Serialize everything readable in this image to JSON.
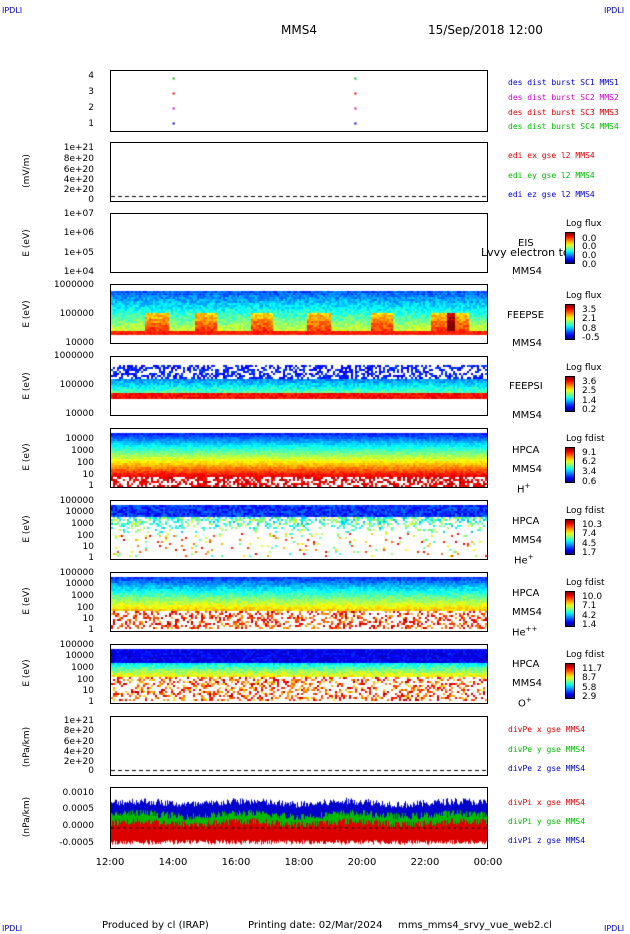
{
  "header": {
    "corner_tl": "IPDLI",
    "corner_tr": "IPDLI",
    "corner_bl": "IPDLI",
    "corner_br": "IPDLI",
    "spacecraft": "MMS4",
    "datetime": "15/Sep/2018 12:00"
  },
  "footer": {
    "producer": "Produced by cl (IRAP)",
    "print_date": "Printing date: 02/Mar/2024",
    "script": "mms_mms4_srvy_vue_web2.cl"
  },
  "colors": {
    "mms1": "#0000cc",
    "mms2": "#cc00cc",
    "mms3": "#dd0000",
    "mms4": "#00bb00"
  },
  "chart_data": [
    {
      "type": "scatter",
      "id": "burst",
      "ylim": [
        0.5,
        4.5
      ],
      "yticks": [
        "4",
        "3",
        "2",
        "1"
      ],
      "legend": [
        "des dist burst SC1 MMS1",
        "des dist burst SC2 MMS2",
        "des dist burst SC3 MMS3",
        "des dist burst SC4 MMS4"
      ],
      "series": [
        {
          "name": "des dist burst SC1 MMS1",
          "y": 1,
          "x_hours": [
            14.0,
            19.8
          ]
        },
        {
          "name": "des dist burst SC2 MMS2",
          "y": 2,
          "x_hours": [
            14.0,
            19.8
          ]
        },
        {
          "name": "des dist burst SC3 MMS3",
          "y": 3,
          "x_hours": [
            14.0,
            19.8
          ]
        },
        {
          "name": "des dist burst SC4 MMS4",
          "y": 4,
          "x_hours": [
            14.0,
            19.8
          ]
        }
      ]
    },
    {
      "type": "line",
      "id": "edi",
      "ylabel": "(mV/m)",
      "yticks": [
        "1e+21",
        "8e+20",
        "6e+20",
        "4e+20",
        "2e+20",
        "0"
      ],
      "legend": [
        "edi ex gse l2 MMS4",
        "edi ey gse l2 MMS4",
        "edi ez gse l2 MMS4"
      ]
    },
    {
      "type": "heatmap",
      "id": "eis",
      "ylabel": "E (eV)",
      "yticks": [
        "1e+07",
        "1e+06",
        "1e+05",
        "1e+04"
      ],
      "instrument": "EIS",
      "spacecraft": "MMS4",
      "overlay": "Lvvy electron to",
      "colorbar": {
        "title": "Log flux",
        "values": [
          "0.0",
          "0.0",
          "0.0",
          "0.0"
        ]
      }
    },
    {
      "type": "heatmap",
      "id": "feepse",
      "ylabel": "E (eV)",
      "yticks": [
        "1000000",
        "100000",
        "10000"
      ],
      "instrument": "FEEPSE",
      "spacecraft": "MMS4",
      "colorbar": {
        "title": "Log flux",
        "values": [
          "3.5",
          "2.1",
          "0.8",
          "-0.5"
        ]
      }
    },
    {
      "type": "heatmap",
      "id": "feepsi",
      "ylabel": "E (eV)",
      "yticks": [
        "1000000",
        "100000",
        "10000"
      ],
      "instrument": "FEEPSI",
      "spacecraft": "MMS4",
      "colorbar": {
        "title": "Log flux",
        "values": [
          "3.6",
          "2.5",
          "1.4",
          "0.2"
        ]
      }
    },
    {
      "type": "heatmap",
      "id": "hpca_h",
      "ylabel": "E (eV)",
      "yticks": [
        "10000",
        "1000",
        "100",
        "10",
        "1"
      ],
      "instrument": "HPCA",
      "spacecraft": "MMS4",
      "species": "H",
      "charge": "+",
      "colorbar": {
        "title": "Log fdist",
        "values": [
          "9.1",
          "6.2",
          "3.4",
          "0.6"
        ]
      }
    },
    {
      "type": "heatmap",
      "id": "hpca_he1",
      "ylabel": "E (eV)",
      "yticks": [
        "100000",
        "10000",
        "1000",
        "100",
        "10",
        "1"
      ],
      "instrument": "HPCA",
      "spacecraft": "MMS4",
      "species": "He",
      "charge": "+",
      "colorbar": {
        "title": "Log fdist",
        "values": [
          "10.3",
          "7.4",
          "4.5",
          "1.7"
        ]
      }
    },
    {
      "type": "heatmap",
      "id": "hpca_he2",
      "ylabel": "E (eV)",
      "yticks": [
        "100000",
        "10000",
        "1000",
        "100",
        "10",
        "1"
      ],
      "instrument": "HPCA",
      "spacecraft": "MMS4",
      "species": "He",
      "charge": "++",
      "colorbar": {
        "title": "Log fdist",
        "values": [
          "10.0",
          "7.1",
          "4.2",
          "1.4"
        ]
      }
    },
    {
      "type": "heatmap",
      "id": "hpca_o",
      "ylabel": "E (eV)",
      "yticks": [
        "100000",
        "10000",
        "1000",
        "100",
        "10",
        "1"
      ],
      "instrument": "HPCA",
      "spacecraft": "MMS4",
      "species": "O",
      "charge": "+",
      "colorbar": {
        "title": "Log fdist",
        "values": [
          "11.7",
          "8.7",
          "5.8",
          "2.9"
        ]
      }
    },
    {
      "type": "line",
      "id": "divpe",
      "ylabel": "(nPa/km)",
      "yticks": [
        "1e+21",
        "8e+20",
        "6e+20",
        "4e+20",
        "2e+20",
        "0"
      ],
      "legend": [
        "divPe x gse MMS4",
        "divPe y gse MMS4",
        "divPe z gse MMS4"
      ]
    },
    {
      "type": "area",
      "id": "divpi",
      "ylabel": "(nPa/km)",
      "ylim": [
        -0.0005,
        0.001
      ],
      "yticks": [
        "0.0010",
        "0.0005",
        "0.0000",
        "-0.0005"
      ],
      "legend": [
        "divPi x gse MMS4",
        "divPi y gse MMS4",
        "divPi z gse MMS4"
      ],
      "series": [
        {
          "name": "divPi z gse MMS4",
          "band": [
            -0.0001,
            0.0005
          ]
        },
        {
          "name": "divPi y gse MMS4",
          "band": [
            -0.0002,
            0.0002
          ]
        },
        {
          "name": "divPi x gse MMS4",
          "band": [
            -0.0003,
            0.0
          ]
        }
      ]
    }
  ],
  "xaxis": {
    "ticks": [
      "12:00",
      "14:00",
      "16:00",
      "18:00",
      "20:00",
      "22:00",
      "00:00"
    ],
    "range_hours": [
      12,
      24
    ]
  }
}
